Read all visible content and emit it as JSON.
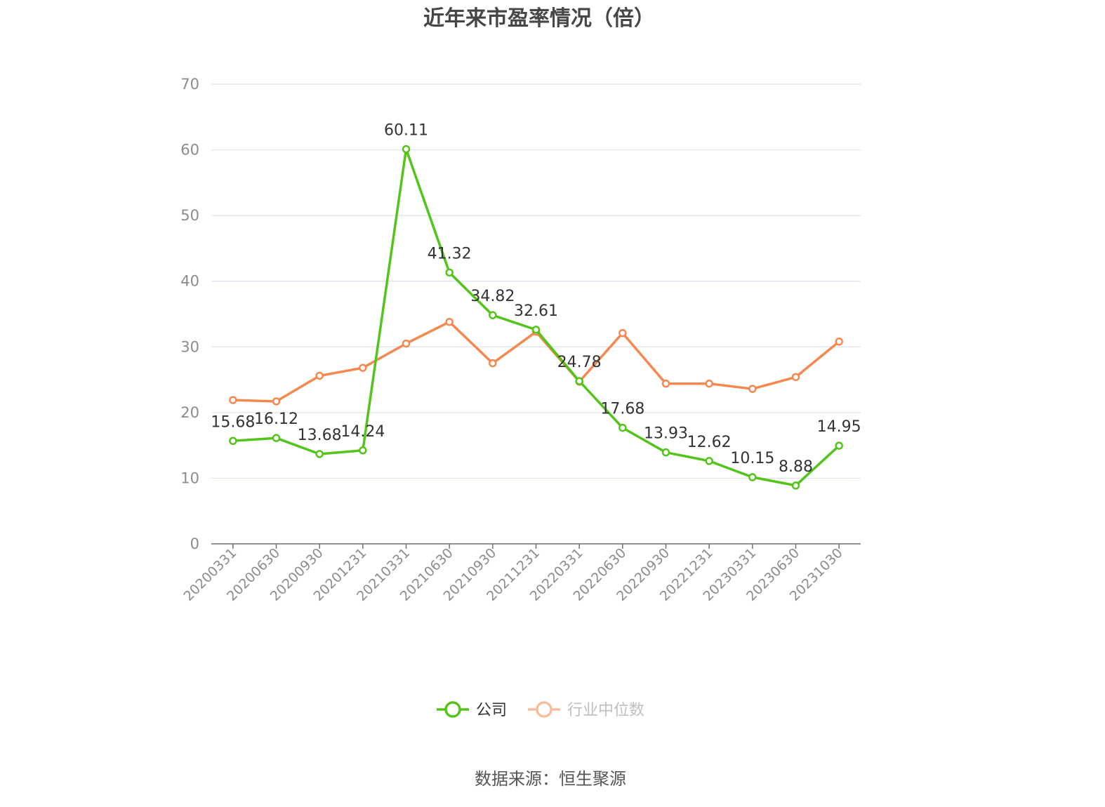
{
  "chart_data": {
    "type": "line",
    "title": "近年来市盈率情况（倍）",
    "xlabel": "",
    "ylabel": "",
    "ylim": [
      0,
      70
    ],
    "yticks": [
      0,
      10,
      20,
      30,
      40,
      50,
      60,
      70
    ],
    "grid": true,
    "legend_position": "bottom",
    "categories": [
      "20200331",
      "20200630",
      "20200930",
      "20201231",
      "20210331",
      "20210630",
      "20210930",
      "20211231",
      "20220331",
      "20220630",
      "20220930",
      "20221231",
      "20230331",
      "20230630",
      "20231030"
    ],
    "series": [
      {
        "name": "公司",
        "color": "#52c41a",
        "values": [
          15.68,
          16.12,
          13.68,
          14.24,
          60.11,
          41.32,
          34.82,
          32.61,
          24.78,
          17.68,
          13.93,
          12.62,
          10.15,
          8.88,
          14.95
        ],
        "labels": [
          "15.68",
          "16.12",
          "13.68",
          "14.24",
          "60.11",
          "41.32",
          "34.82",
          "32.61",
          "24.78",
          "17.68",
          "13.93",
          "12.62",
          "10.15",
          "8.88",
          "14.95"
        ]
      },
      {
        "name": "行业中位数",
        "color": "#f5884f",
        "values": [
          21.9,
          21.7,
          25.6,
          26.8,
          30.5,
          33.8,
          27.5,
          32.3,
          24.7,
          32.1,
          24.4,
          24.4,
          23.6,
          25.4,
          30.8
        ]
      }
    ],
    "source": "数据来源：恒生聚源"
  }
}
